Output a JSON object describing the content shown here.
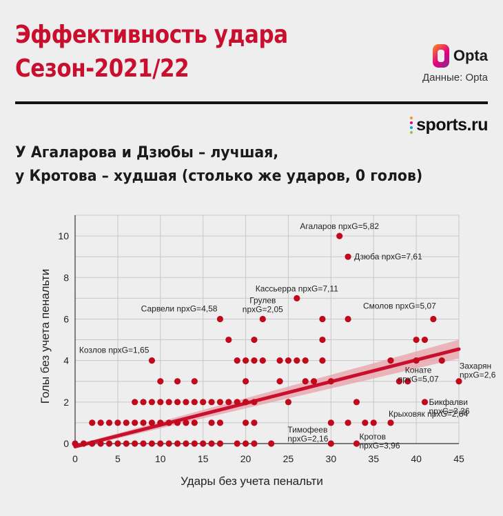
{
  "title": {
    "line1": "Эффективность удара",
    "line2": "Сезон-2021/22"
  },
  "source": {
    "brand": "Opta",
    "credit": "Данные: Opta"
  },
  "publisher": "sports.ru",
  "subtitle": {
    "line1": "У Агаларова и Дзюбы – лучшая,",
    "line2": "у Кротова – худшая (столько же ударов, 0 голов)"
  },
  "colors": {
    "accent": "#c8102e",
    "dot": "#c00a1c",
    "trend": "#c8102e",
    "band": "#e8a0aa",
    "grid": "#c8c8c8"
  },
  "chart_data": {
    "type": "scatter",
    "xlabel": "Удары без учета пенальти",
    "ylabel": "Голы без учета пенальти",
    "xlim": [
      0,
      45
    ],
    "ylim": [
      0,
      11
    ],
    "xticks": [
      0,
      5,
      10,
      15,
      20,
      25,
      30,
      35,
      40,
      45
    ],
    "yticks": [
      0,
      2,
      4,
      6,
      8,
      10
    ],
    "grid": true,
    "trend": {
      "x": [
        0,
        45
      ],
      "y": [
        -0.15,
        4.55
      ],
      "band_start": 0.08,
      "band_end": 0.45
    },
    "points": [
      {
        "x": 0,
        "y": 0
      },
      {
        "x": 1,
        "y": 0
      },
      {
        "x": 2,
        "y": 0
      },
      {
        "x": 3,
        "y": 0
      },
      {
        "x": 4,
        "y": 0
      },
      {
        "x": 5,
        "y": 0
      },
      {
        "x": 6,
        "y": 0
      },
      {
        "x": 7,
        "y": 0
      },
      {
        "x": 8,
        "y": 0
      },
      {
        "x": 9,
        "y": 0
      },
      {
        "x": 10,
        "y": 0
      },
      {
        "x": 11,
        "y": 0
      },
      {
        "x": 12,
        "y": 0
      },
      {
        "x": 13,
        "y": 0
      },
      {
        "x": 14,
        "y": 0
      },
      {
        "x": 15,
        "y": 0
      },
      {
        "x": 16,
        "y": 0
      },
      {
        "x": 17,
        "y": 0
      },
      {
        "x": 19,
        "y": 0
      },
      {
        "x": 20,
        "y": 0
      },
      {
        "x": 21,
        "y": 0
      },
      {
        "x": 23,
        "y": 0
      },
      {
        "x": 30,
        "y": 0
      },
      {
        "x": 33,
        "y": 0
      },
      {
        "x": 2,
        "y": 1
      },
      {
        "x": 3,
        "y": 1
      },
      {
        "x": 4,
        "y": 1
      },
      {
        "x": 5,
        "y": 1
      },
      {
        "x": 6,
        "y": 1
      },
      {
        "x": 7,
        "y": 1
      },
      {
        "x": 8,
        "y": 1
      },
      {
        "x": 9,
        "y": 1
      },
      {
        "x": 10,
        "y": 1
      },
      {
        "x": 11,
        "y": 1
      },
      {
        "x": 12,
        "y": 1
      },
      {
        "x": 13,
        "y": 1
      },
      {
        "x": 14,
        "y": 1
      },
      {
        "x": 16,
        "y": 1
      },
      {
        "x": 17,
        "y": 1
      },
      {
        "x": 20,
        "y": 1
      },
      {
        "x": 21,
        "y": 1
      },
      {
        "x": 30,
        "y": 1
      },
      {
        "x": 32,
        "y": 1
      },
      {
        "x": 34,
        "y": 1
      },
      {
        "x": 35,
        "y": 1
      },
      {
        "x": 37,
        "y": 1
      },
      {
        "x": 7,
        "y": 2
      },
      {
        "x": 8,
        "y": 2
      },
      {
        "x": 9,
        "y": 2
      },
      {
        "x": 10,
        "y": 2
      },
      {
        "x": 11,
        "y": 2
      },
      {
        "x": 12,
        "y": 2
      },
      {
        "x": 13,
        "y": 2
      },
      {
        "x": 14,
        "y": 2
      },
      {
        "x": 15,
        "y": 2
      },
      {
        "x": 16,
        "y": 2
      },
      {
        "x": 17,
        "y": 2
      },
      {
        "x": 18,
        "y": 2
      },
      {
        "x": 19,
        "y": 2
      },
      {
        "x": 20,
        "y": 2
      },
      {
        "x": 21,
        "y": 2
      },
      {
        "x": 25,
        "y": 2
      },
      {
        "x": 33,
        "y": 2
      },
      {
        "x": 41,
        "y": 2
      },
      {
        "x": 10,
        "y": 3
      },
      {
        "x": 12,
        "y": 3
      },
      {
        "x": 14,
        "y": 3
      },
      {
        "x": 20,
        "y": 3
      },
      {
        "x": 24,
        "y": 3
      },
      {
        "x": 27,
        "y": 3
      },
      {
        "x": 28,
        "y": 3
      },
      {
        "x": 30,
        "y": 3
      },
      {
        "x": 38,
        "y": 3
      },
      {
        "x": 39,
        "y": 3
      },
      {
        "x": 45,
        "y": 3
      },
      {
        "x": 9,
        "y": 4
      },
      {
        "x": 19,
        "y": 4
      },
      {
        "x": 20,
        "y": 4
      },
      {
        "x": 21,
        "y": 4
      },
      {
        "x": 22,
        "y": 4
      },
      {
        "x": 24,
        "y": 4
      },
      {
        "x": 25,
        "y": 4
      },
      {
        "x": 26,
        "y": 4
      },
      {
        "x": 27,
        "y": 4
      },
      {
        "x": 29,
        "y": 4
      },
      {
        "x": 37,
        "y": 4
      },
      {
        "x": 40,
        "y": 4
      },
      {
        "x": 43,
        "y": 4
      },
      {
        "x": 18,
        "y": 5
      },
      {
        "x": 21,
        "y": 5
      },
      {
        "x": 29,
        "y": 5
      },
      {
        "x": 40,
        "y": 5
      },
      {
        "x": 41,
        "y": 5
      },
      {
        "x": 17,
        "y": 6
      },
      {
        "x": 22,
        "y": 6
      },
      {
        "x": 29,
        "y": 6
      },
      {
        "x": 32,
        "y": 6
      },
      {
        "x": 42,
        "y": 6
      },
      {
        "x": 26,
        "y": 7
      },
      {
        "x": 32,
        "y": 9
      },
      {
        "x": 31,
        "y": 10
      }
    ],
    "annotations": [
      {
        "x": 31,
        "y": 10,
        "lines": [
          "Агаларов npxG=5,82"
        ],
        "pos": "above"
      },
      {
        "x": 32,
        "y": 9,
        "lines": [
          "Дзюба npxG=7,61"
        ],
        "pos": "right"
      },
      {
        "x": 26,
        "y": 7,
        "lines": [
          "Кассьерра npxG=7,11"
        ],
        "pos": "above"
      },
      {
        "x": 22,
        "y": 6,
        "lines": [
          "Грулев",
          "npxG=2,05"
        ],
        "pos": "above"
      },
      {
        "x": 17,
        "y": 6,
        "lines": [
          "Сарвели npxG=4,58"
        ],
        "pos": "left-up"
      },
      {
        "x": 42,
        "y": 6,
        "lines": [
          "Смолов npxG=5,07"
        ],
        "pos": "above-left"
      },
      {
        "x": 9,
        "y": 4,
        "lines": [
          "Козлов npxG=1,65"
        ],
        "pos": "left-up"
      },
      {
        "x": 40,
        "y": 4,
        "lines": [
          "Конате",
          "npxG=5,07"
        ],
        "pos": "below"
      },
      {
        "x": 45,
        "y": 3,
        "lines": [
          "Захарян",
          "npxG=2,6"
        ],
        "pos": "above-right"
      },
      {
        "x": 41,
        "y": 2,
        "lines": [
          "Бикфалви",
          "npxG=3,36"
        ],
        "pos": "right-below"
      },
      {
        "x": 37,
        "y": 1,
        "lines": [
          "Крыховяк npxG=2,84"
        ],
        "pos": "below-right"
      },
      {
        "x": 30,
        "y": 0,
        "lines": [
          "Тимофеев",
          "npxG=2,16"
        ],
        "pos": "left-above"
      },
      {
        "x": 33,
        "y": 0,
        "lines": [
          "Кротов",
          "npxG=3,96"
        ],
        "pos": "right"
      }
    ]
  }
}
